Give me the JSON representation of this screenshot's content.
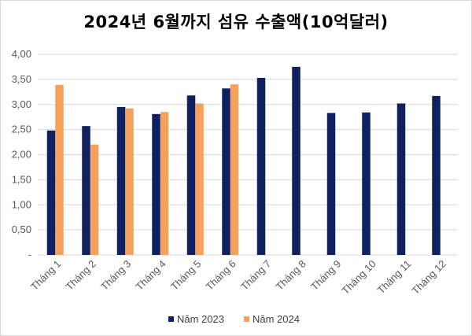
{
  "chart_data": {
    "type": "bar",
    "title": "2024년 6월까지 섬유 수출액(10억달러)",
    "xlabel": "",
    "ylabel": "",
    "categories": [
      "Tháng 1",
      "Tháng 2",
      "Tháng 3",
      "Tháng 4",
      "Tháng 5",
      "Tháng 6",
      "Tháng 7",
      "Tháng 8",
      "Tháng 9",
      "Tháng 10",
      "Tháng 11",
      "Tháng 12"
    ],
    "series": [
      {
        "name": "Năm 2023",
        "color": "#0f2161",
        "values": [
          2.48,
          2.57,
          2.95,
          2.81,
          3.18,
          3.32,
          3.53,
          3.75,
          2.83,
          2.84,
          3.02,
          3.17
        ]
      },
      {
        "name": "Năm 2024",
        "color": "#f4a15d",
        "values": [
          3.39,
          2.2,
          2.92,
          2.85,
          3.02,
          3.4,
          null,
          null,
          null,
          null,
          null,
          null
        ]
      }
    ],
    "ylim": [
      0,
      4
    ],
    "ytick_values": [
      0,
      0.5,
      1,
      1.5,
      2,
      2.5,
      3,
      3.5,
      4
    ],
    "ytick_labels": [
      "-",
      "0,50",
      "1,00",
      "1,50",
      "2,00",
      "2,50",
      "3,00",
      "3,50",
      "4,00"
    ],
    "grid": true,
    "legend_position": "bottom"
  }
}
